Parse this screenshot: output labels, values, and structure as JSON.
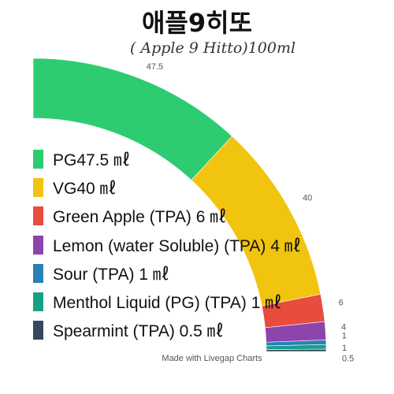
{
  "chart_data": {
    "type": "pie",
    "title": "애플9히또",
    "subtitle": "( Apple 9 Hitto)100ml",
    "categories": [
      "PG",
      "VG",
      "Green Apple (TPA)",
      "Lemon (water Soluble) (TPA)",
      "Sour (TPA)",
      "Menthol Liquid (PG) (TPA)",
      "Spearmint (TPA)"
    ],
    "values": [
      47.5,
      40,
      6,
      4,
      1,
      1,
      0.5
    ],
    "value_labels": [
      "47.5",
      "40",
      "6",
      "4",
      "1",
      "1",
      "0.5"
    ],
    "legend_labels": [
      "PG47.5 ㎖",
      "VG40 ㎖",
      "Green Apple (TPA) 6 ㎖",
      "Lemon (water Soluble) (TPA) 4 ㎖",
      "Sour (TPA) 1 ㎖",
      "Menthol Liquid (PG) (TPA) 1 ㎖",
      "Spearmint (TPA) 0.5 ㎖"
    ],
    "colors": [
      "#2ecc71",
      "#f1c40f",
      "#e74c3c",
      "#8e44ad",
      "#2980b9",
      "#16a085",
      "#34495e"
    ],
    "legend_position": "left",
    "style": "quarter-donut"
  },
  "footer": "Made with Livegap Charts"
}
